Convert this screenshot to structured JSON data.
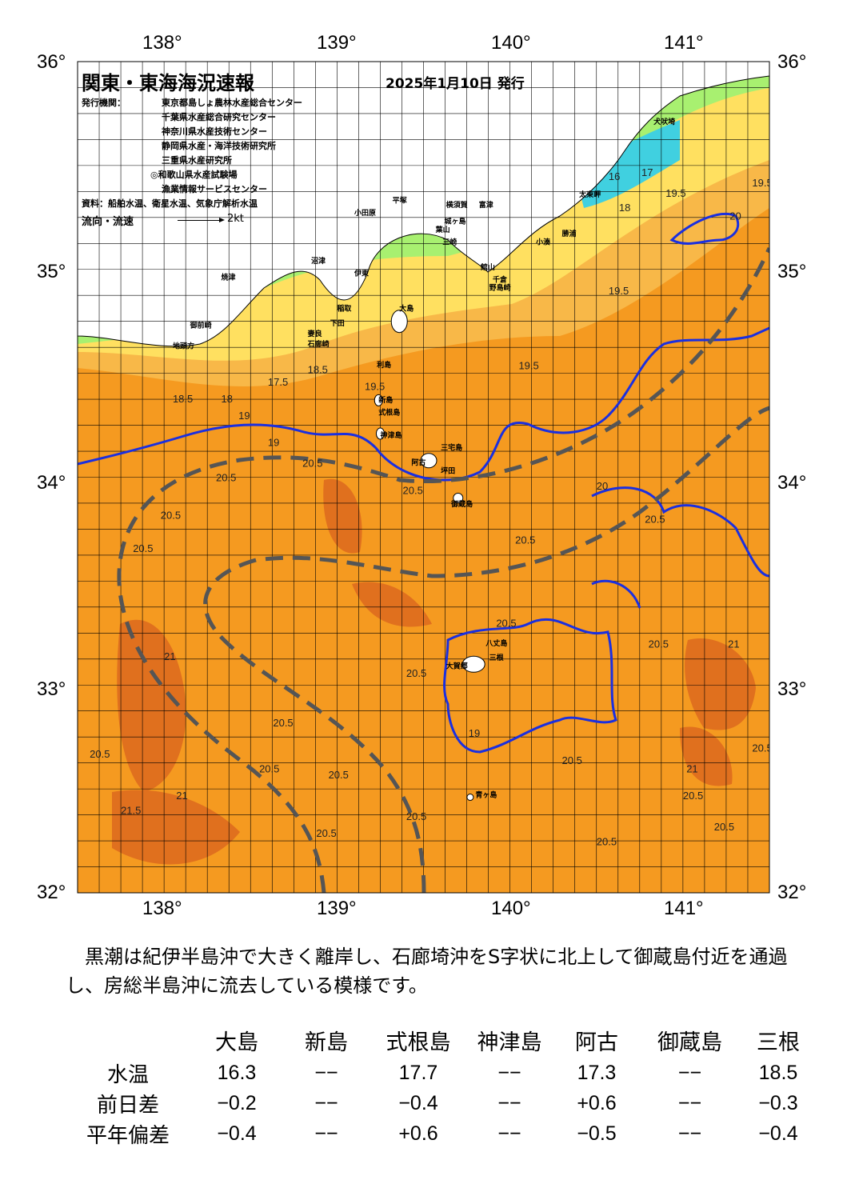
{
  "header": {
    "title": "関東・東海海況速報",
    "date": "2025年1月10日 発行",
    "issuer_label": "発行機関：",
    "issuers": [
      "東京都島しょ農林水産総合センター",
      "千葉県水産総合研究センター",
      "神奈川県水産技術センター",
      "静岡県水産・海洋技術研究所",
      "三重県水産研究所",
      "◎和歌山県水産試験場",
      "漁業情報サービスセンター"
    ],
    "sources": "資料：船舶水温、衛星水温、気象庁解析水温",
    "flow_legend": "流向・流速",
    "flow_scale": "2kt"
  },
  "axes": {
    "lon_labels": [
      "138°",
      "139°",
      "140°",
      "141°"
    ],
    "lat_labels": [
      "36°",
      "35°",
      "34°",
      "33°",
      "32°"
    ],
    "lon_range": [
      137.5,
      141.5
    ],
    "lat_range": [
      32,
      36
    ]
  },
  "colors": {
    "warm_water": "#f59a20",
    "warmest_water": "#e0701e",
    "cool_water": "#ffe060",
    "coastal_water": "#a8f070",
    "land": "#ffffff",
    "kuroshio_axis": "#555555",
    "isotherm_19": "#1a2fe0",
    "grid": "#000000"
  },
  "place_labels": [
    {
      "name": "犬吠埼",
      "lon": 140.83,
      "lat": 35.7
    },
    {
      "name": "太東岬",
      "lon": 140.4,
      "lat": 35.35
    },
    {
      "name": "勝浦",
      "lon": 140.3,
      "lat": 35.16
    },
    {
      "name": "小湊",
      "lon": 140.15,
      "lat": 35.12
    },
    {
      "name": "富津",
      "lon": 139.82,
      "lat": 35.3
    },
    {
      "name": "横須賀",
      "lon": 139.63,
      "lat": 35.3
    },
    {
      "name": "平塚",
      "lon": 139.32,
      "lat": 35.32
    },
    {
      "name": "小田原",
      "lon": 139.1,
      "lat": 35.26
    },
    {
      "name": "城ヶ島",
      "lon": 139.62,
      "lat": 35.22
    },
    {
      "name": "葉山",
      "lon": 139.57,
      "lat": 35.18
    },
    {
      "name": "三崎",
      "lon": 139.61,
      "lat": 35.12
    },
    {
      "name": "館山",
      "lon": 139.83,
      "lat": 35.0
    },
    {
      "name": "千倉",
      "lon": 139.9,
      "lat": 34.94
    },
    {
      "name": "野島崎",
      "lon": 139.88,
      "lat": 34.9
    },
    {
      "name": "沼津",
      "lon": 138.85,
      "lat": 35.03
    },
    {
      "name": "伊東",
      "lon": 139.1,
      "lat": 34.97
    },
    {
      "name": "焼津",
      "lon": 138.33,
      "lat": 34.95
    },
    {
      "name": "稲取",
      "lon": 139.0,
      "lat": 34.8
    },
    {
      "name": "下田",
      "lon": 138.96,
      "lat": 34.73
    },
    {
      "name": "大島",
      "lon": 139.36,
      "lat": 34.8
    },
    {
      "name": "御前崎",
      "lon": 138.15,
      "lat": 34.72
    },
    {
      "name": "妻良",
      "lon": 138.83,
      "lat": 34.68
    },
    {
      "name": "石廊崎",
      "lon": 138.83,
      "lat": 34.63
    },
    {
      "name": "地頭方",
      "lon": 138.05,
      "lat": 34.62
    },
    {
      "name": "利島",
      "lon": 139.23,
      "lat": 34.53
    },
    {
      "name": "新島",
      "lon": 139.24,
      "lat": 34.36
    },
    {
      "name": "式根島",
      "lon": 139.24,
      "lat": 34.3
    },
    {
      "name": "神津島",
      "lon": 139.25,
      "lat": 34.19
    },
    {
      "name": "三宅島",
      "lon": 139.6,
      "lat": 34.13
    },
    {
      "name": "阿古",
      "lon": 139.43,
      "lat": 34.06
    },
    {
      "name": "坪田",
      "lon": 139.6,
      "lat": 34.02
    },
    {
      "name": "御蔵島",
      "lon": 139.66,
      "lat": 33.86
    },
    {
      "name": "八丈島",
      "lon": 139.86,
      "lat": 33.19
    },
    {
      "name": "大賀郷",
      "lon": 139.63,
      "lat": 33.08
    },
    {
      "name": "三根",
      "lon": 139.88,
      "lat": 33.12
    },
    {
      "name": "青ヶ島",
      "lon": 139.8,
      "lat": 32.46
    }
  ],
  "isotherm_labels": [
    {
      "t": "19.5",
      "lon": 141.4,
      "lat": 35.4
    },
    {
      "t": "19.5",
      "lon": 140.9,
      "lat": 35.35
    },
    {
      "t": "20",
      "lon": 141.27,
      "lat": 35.24
    },
    {
      "t": "17",
      "lon": 140.76,
      "lat": 35.45
    },
    {
      "t": "16",
      "lon": 140.57,
      "lat": 35.43
    },
    {
      "t": "18",
      "lon": 140.63,
      "lat": 35.28
    },
    {
      "t": "19.5",
      "lon": 140.57,
      "lat": 34.88
    },
    {
      "t": "19.5",
      "lon": 140.05,
      "lat": 34.52
    },
    {
      "t": "18.5",
      "lon": 138.83,
      "lat": 34.5
    },
    {
      "t": "17.5",
      "lon": 138.6,
      "lat": 34.44
    },
    {
      "t": "19.5",
      "lon": 139.16,
      "lat": 34.42
    },
    {
      "t": "18",
      "lon": 138.33,
      "lat": 34.36
    },
    {
      "t": "18.5",
      "lon": 138.05,
      "lat": 34.36
    },
    {
      "t": "19",
      "lon": 138.43,
      "lat": 34.28
    },
    {
      "t": "20.5",
      "lon": 138.8,
      "lat": 34.05
    },
    {
      "t": "20.5",
      "lon": 138.3,
      "lat": 33.98
    },
    {
      "t": "20.5",
      "lon": 137.98,
      "lat": 33.8
    },
    {
      "t": "20.5",
      "lon": 137.82,
      "lat": 33.64
    },
    {
      "t": "20.5",
      "lon": 139.38,
      "lat": 33.92
    },
    {
      "t": "20.5",
      "lon": 140.03,
      "lat": 33.68
    },
    {
      "t": "20",
      "lon": 140.5,
      "lat": 33.94
    },
    {
      "t": "20.5",
      "lon": 140.78,
      "lat": 33.78
    },
    {
      "t": "20.5",
      "lon": 139.92,
      "lat": 33.28
    },
    {
      "t": "20.5",
      "lon": 140.8,
      "lat": 33.18
    },
    {
      "t": "21",
      "lon": 141.26,
      "lat": 33.18
    },
    {
      "t": "21",
      "lon": 138.0,
      "lat": 33.12
    },
    {
      "t": "20.5",
      "lon": 139.4,
      "lat": 33.04
    },
    {
      "t": "20.5",
      "lon": 138.63,
      "lat": 32.8
    },
    {
      "t": "20.5",
      "lon": 138.55,
      "lat": 32.58
    },
    {
      "t": "20.5",
      "lon": 138.95,
      "lat": 32.55
    },
    {
      "t": "20.5",
      "lon": 140.3,
      "lat": 32.62
    },
    {
      "t": "20.5",
      "lon": 141.4,
      "lat": 32.68
    },
    {
      "t": "21",
      "lon": 141.02,
      "lat": 32.58
    },
    {
      "t": "20.5",
      "lon": 141.0,
      "lat": 32.45
    },
    {
      "t": "21",
      "lon": 138.07,
      "lat": 32.45
    },
    {
      "t": "21.5",
      "lon": 137.75,
      "lat": 32.38
    },
    {
      "t": "20.5",
      "lon": 139.4,
      "lat": 32.35
    },
    {
      "t": "20.5",
      "lon": 138.88,
      "lat": 32.27
    },
    {
      "t": "20.5",
      "lon": 140.5,
      "lat": 32.23
    },
    {
      "t": "20.5",
      "lon": 141.18,
      "lat": 32.3
    },
    {
      "t": "20.5",
      "lon": 137.57,
      "lat": 32.65
    },
    {
      "t": "19",
      "lon": 139.76,
      "lat": 32.75
    },
    {
      "t": "19",
      "lon": 138.6,
      "lat": 34.15
    }
  ],
  "summary": "　黒潮は紀伊半島沖で大きく離岸し、石廊埼沖をS字状に北上して御蔵島付近を通過し、房総半島沖に流去している模様です。",
  "table": {
    "stations": [
      "大島",
      "新島",
      "式根島",
      "神津島",
      "阿古",
      "御蔵島",
      "三根"
    ],
    "rows": [
      {
        "label": "水温",
        "values": [
          "16.3",
          "−−",
          "17.7",
          "−−",
          "17.3",
          "−−",
          "18.5"
        ]
      },
      {
        "label": "前日差",
        "values": [
          "−0.2",
          "−−",
          "−0.4",
          "−−",
          "+0.6",
          "−−",
          "−0.3"
        ]
      },
      {
        "label": "平年偏差",
        "values": [
          "−0.4",
          "−−",
          "+0.6",
          "−−",
          "−0.5",
          "−−",
          "−0.4"
        ]
      }
    ]
  }
}
